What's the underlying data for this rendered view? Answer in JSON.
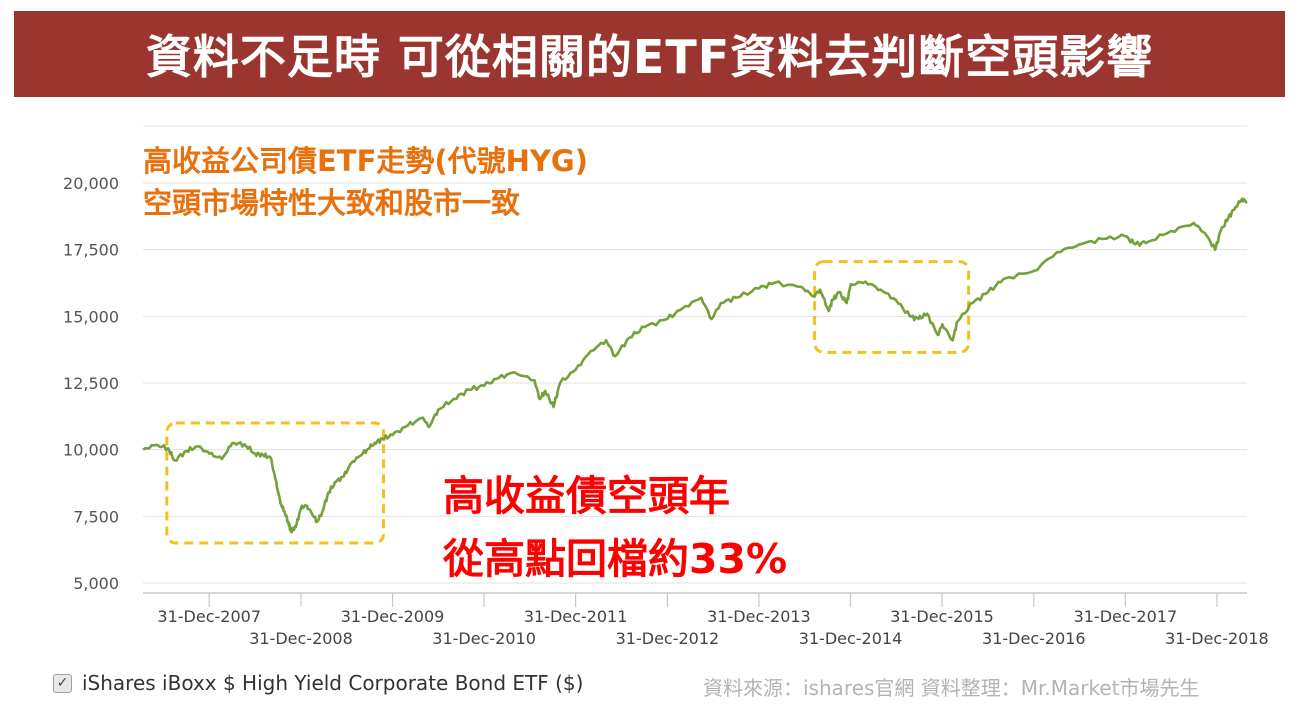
{
  "banner": {
    "title": "資料不足時 可從相關的ETF資料去判斷空頭影響"
  },
  "annotations": {
    "orange_line1": "高收益公司債ETF走勢(代號HYG)",
    "orange_line2": "空頭市場特性大致和股市一致",
    "red_line1": "高收益債空頭年",
    "red_line2": "從高點回檔約33%"
  },
  "legend": {
    "checked": true,
    "check_glyph": "✓",
    "label": "iShares iBoxx $ High Yield Corporate Bond ETF ($)"
  },
  "source": "資料來源：ishares官網 資料整理：Mr.Market市場先生",
  "colors": {
    "line": "#76a03a",
    "banner": "#9b3530",
    "highlight": "#f3c01d",
    "grid": "#e2e2e2"
  },
  "chart_data": {
    "type": "line",
    "ylim": [
      5000,
      20000
    ],
    "xlim": [
      "2007-04-11",
      "2019-04-30"
    ],
    "y_ticks": [
      5000,
      7500,
      10000,
      12500,
      15000,
      17500,
      20000
    ],
    "y_tick_labels": [
      "5,000",
      "7,500",
      "10,000",
      "12,500",
      "15,000",
      "17,500",
      "20,000"
    ],
    "x_ticks": [
      "2007-12-31",
      "2008-12-31",
      "2009-12-31",
      "2010-12-31",
      "2011-12-31",
      "2012-12-31",
      "2013-12-31",
      "2014-12-31",
      "2015-12-31",
      "2016-12-31",
      "2017-12-31",
      "2018-12-31"
    ],
    "x_tick_labels": [
      "31-Dec-2007",
      "31-Dec-2008",
      "31-Dec-2009",
      "31-Dec-2010",
      "31-Dec-2011",
      "31-Dec-2012",
      "31-Dec-2013",
      "31-Dec-2014",
      "31-Dec-2015",
      "31-Dec-2016",
      "31-Dec-2017",
      "31-Dec-2018"
    ],
    "grid": true,
    "series": [
      {
        "name": "iShares iBoxx $ High Yield Corporate Bond ETF ($)",
        "x": [
          "2007-04-11",
          "2007-06-01",
          "2007-07-20",
          "2007-08-15",
          "2007-10-01",
          "2007-11-15",
          "2008-01-01",
          "2008-02-20",
          "2008-04-01",
          "2008-05-20",
          "2008-07-01",
          "2008-08-01",
          "2008-09-01",
          "2008-09-20",
          "2008-10-10",
          "2008-10-25",
          "2008-11-10",
          "2008-11-20",
          "2008-12-10",
          "2008-12-31",
          "2009-01-20",
          "2009-02-10",
          "2009-03-05",
          "2009-03-25",
          "2009-04-20",
          "2009-05-20",
          "2009-06-20",
          "2009-07-20",
          "2009-08-20",
          "2009-09-20",
          "2009-10-20",
          "2009-11-20",
          "2009-12-31",
          "2010-03-01",
          "2010-05-01",
          "2010-05-25",
          "2010-07-01",
          "2010-09-01",
          "2010-11-01",
          "2010-12-31",
          "2011-03-01",
          "2011-05-01",
          "2011-07-20",
          "2011-08-10",
          "2011-09-01",
          "2011-10-04",
          "2011-10-30",
          "2011-12-31",
          "2012-03-01",
          "2012-05-01",
          "2012-06-05",
          "2012-08-01",
          "2012-10-01",
          "2012-12-31",
          "2013-03-01",
          "2013-05-15",
          "2013-06-25",
          "2013-08-01",
          "2013-10-01",
          "2013-12-31",
          "2014-03-01",
          "2014-06-20",
          "2014-08-05",
          "2014-09-01",
          "2014-10-05",
          "2014-10-20",
          "2014-11-15",
          "2014-12-16",
          "2015-01-01",
          "2015-03-01",
          "2015-05-01",
          "2015-07-01",
          "2015-08-25",
          "2015-09-28",
          "2015-11-01",
          "2015-12-14",
          "2016-01-01",
          "2016-02-11",
          "2016-03-01",
          "2016-05-01",
          "2016-07-01",
          "2016-09-01",
          "2016-12-31",
          "2017-04-01",
          "2017-07-01",
          "2017-10-01",
          "2017-12-31",
          "2018-02-09",
          "2018-04-01",
          "2018-07-01",
          "2018-09-30",
          "2018-11-15",
          "2018-12-24",
          "2019-01-15",
          "2019-02-15",
          "2019-03-15",
          "2019-04-10",
          "2019-04-30"
        ],
        "values": [
          10000,
          10180,
          10050,
          9600,
          9950,
          10120,
          9850,
          9650,
          10250,
          10200,
          9850,
          9800,
          9700,
          8900,
          8000,
          7700,
          7300,
          6950,
          7100,
          7800,
          7900,
          7650,
          7300,
          7650,
          8400,
          8800,
          9000,
          9500,
          9750,
          10000,
          10250,
          10400,
          10550,
          10900,
          11200,
          10850,
          11500,
          11900,
          12250,
          12400,
          12700,
          12900,
          12600,
          11900,
          12200,
          11600,
          12500,
          13000,
          13700,
          14100,
          13500,
          14200,
          14600,
          14900,
          15300,
          15700,
          14900,
          15500,
          15700,
          16050,
          16250,
          16100,
          15750,
          16000,
          15200,
          15600,
          15900,
          15500,
          16200,
          16300,
          16000,
          15600,
          15000,
          14900,
          15100,
          14300,
          14700,
          14100,
          14800,
          15500,
          15900,
          16400,
          16700,
          17400,
          17700,
          17900,
          18000,
          17700,
          17800,
          18200,
          18500,
          18100,
          17500,
          18200,
          18700,
          19100,
          19400,
          19300
        ]
      }
    ]
  }
}
